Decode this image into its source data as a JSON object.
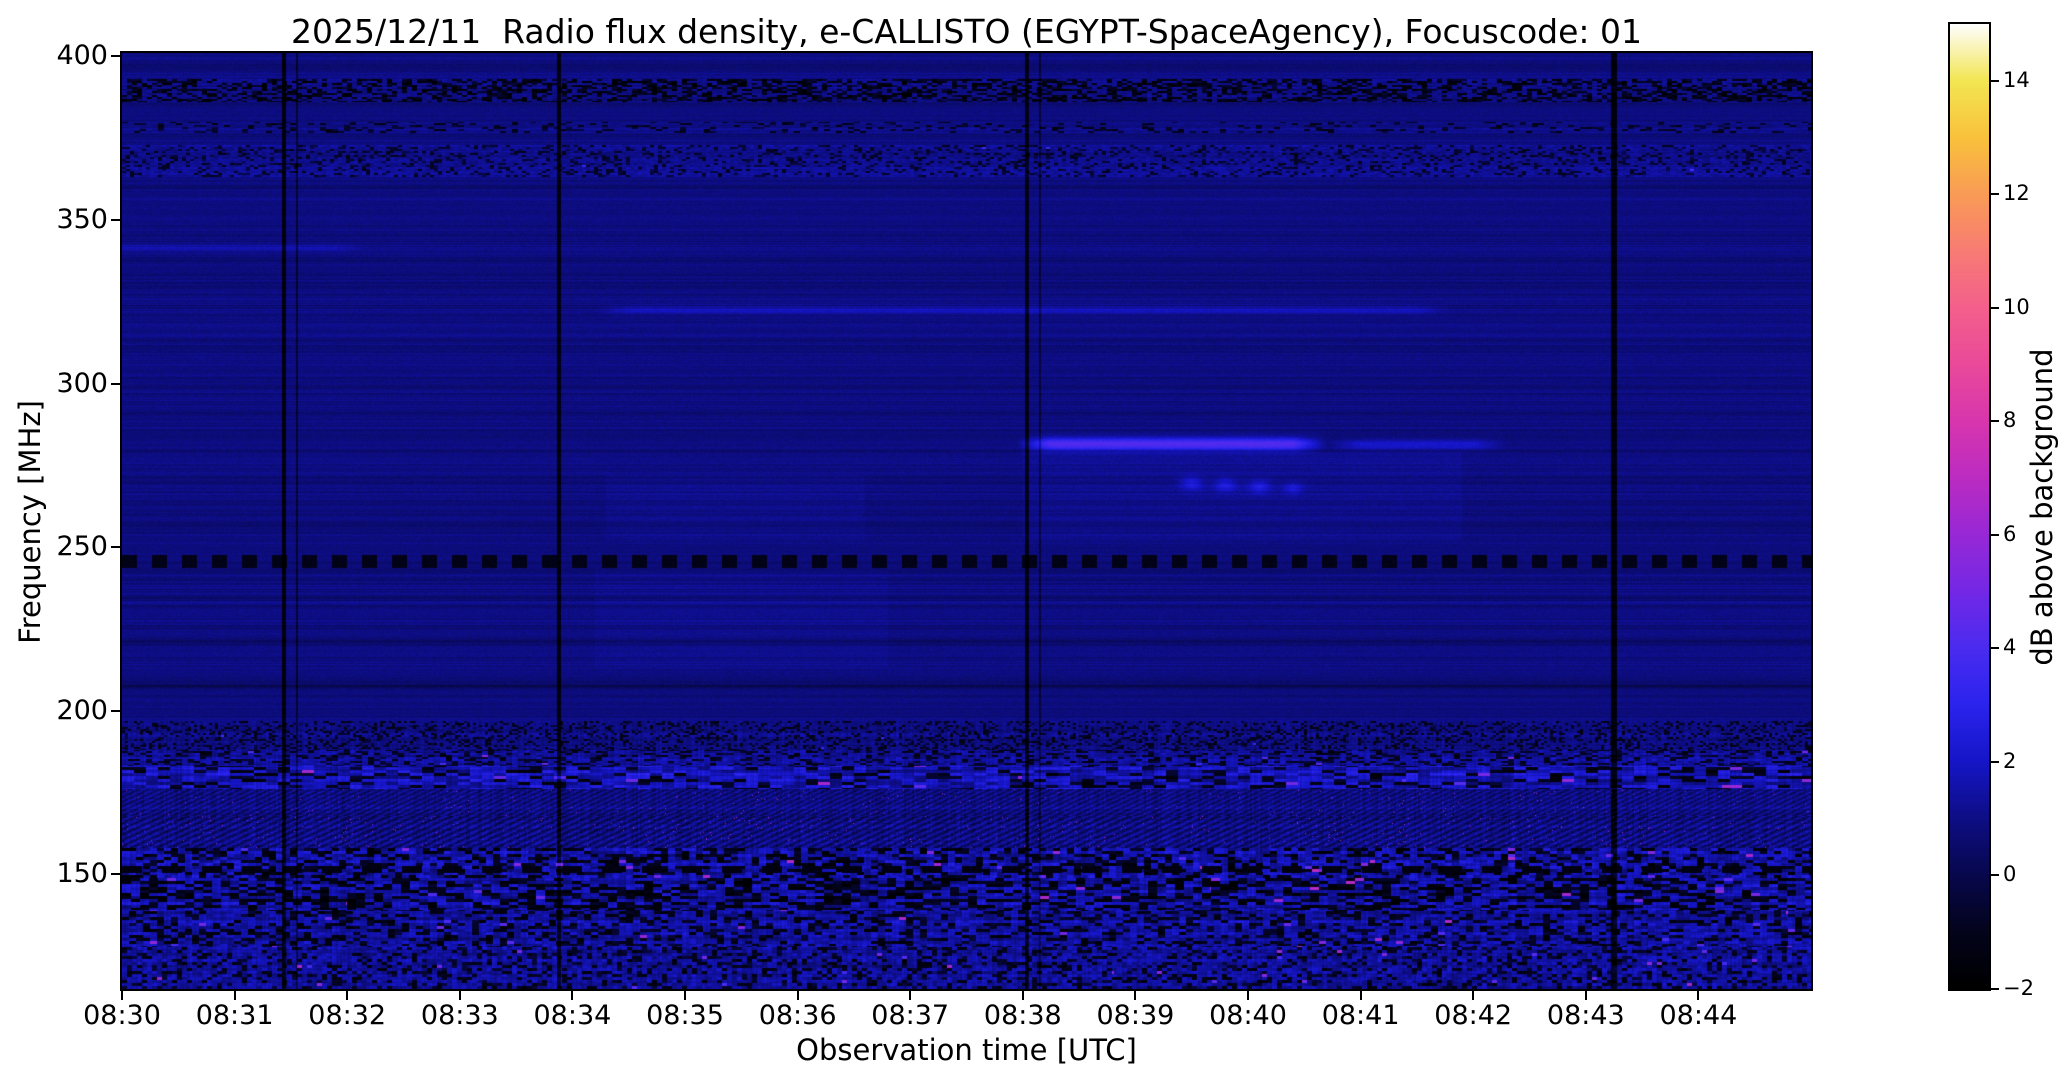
{
  "chart_data": {
    "type": "heatmap",
    "title": "2025/12/11  Radio flux density, e-CALLISTO (EGYPT-SpaceAgency), Focuscode: 01",
    "xlabel": "Observation time [UTC]",
    "ylabel": "Frequency [MHz]",
    "x_ticks": [
      "08:30",
      "08:31",
      "08:32",
      "08:33",
      "08:34",
      "08:35",
      "08:36",
      "08:37",
      "08:38",
      "08:39",
      "08:40",
      "08:41",
      "08:42",
      "08:43",
      "08:44"
    ],
    "x_minutes": 15,
    "x_range": [
      "08:30",
      "08:45"
    ],
    "y_ticks": [
      400,
      350,
      300,
      250,
      200,
      150
    ],
    "y_range": [
      115,
      401
    ],
    "y_inverted": true,
    "grid": false,
    "colorbar": {
      "label": "dB above background",
      "range": [
        -2,
        15
      ],
      "ticks": [
        {
          "value": 14,
          "label": "14"
        },
        {
          "value": 12,
          "label": "12"
        },
        {
          "value": 10,
          "label": "10"
        },
        {
          "value": 8,
          "label": "8"
        },
        {
          "value": 6,
          "label": "6"
        },
        {
          "value": 4,
          "label": "4"
        },
        {
          "value": 2,
          "label": "2"
        },
        {
          "value": 0,
          "label": "0"
        },
        {
          "value": -2,
          "label": "−2"
        }
      ]
    },
    "colormap": [
      [
        -2,
        "#000000"
      ],
      [
        -1,
        "#04041c"
      ],
      [
        0,
        "#08084e"
      ],
      [
        1,
        "#0e0e86"
      ],
      [
        2,
        "#1616c8"
      ],
      [
        3,
        "#2b24ee"
      ],
      [
        4,
        "#4b2cf0"
      ],
      [
        5,
        "#7428e6"
      ],
      [
        6,
        "#9828d6"
      ],
      [
        7,
        "#bc2cc2"
      ],
      [
        8,
        "#d836ae"
      ],
      [
        9,
        "#ea4a9a"
      ],
      [
        10,
        "#f4608c"
      ],
      [
        11,
        "#f87c74"
      ],
      [
        12,
        "#fa9c56"
      ],
      [
        13,
        "#f9c23c"
      ],
      [
        14,
        "#f3e654"
      ],
      [
        15,
        "#ffffff"
      ]
    ],
    "background_db": 0.62,
    "bands": [
      {
        "name": "rfi-390",
        "f_lo": 386,
        "f_hi": 393,
        "type": "speckle",
        "blockx": 5,
        "blocky": 2,
        "salt": 1,
        "p_dark": 0.5,
        "dark_lo": -2,
        "dark_hi": -0.4,
        "add": 0.5,
        "p_hot": 0.0,
        "hot_lo": 3,
        "hot_hi": 5
      },
      {
        "name": "rfi-378",
        "f_lo": 376.5,
        "f_hi": 380,
        "type": "speckle",
        "blockx": 6,
        "blocky": 2,
        "salt": 2,
        "p_dark": 0.22,
        "dark_lo": -1.4,
        "dark_hi": -0.2,
        "add": 0.3,
        "p_hot": 0.0,
        "hot_lo": 3,
        "hot_hi": 5
      },
      {
        "name": "rfi-368",
        "f_lo": 363,
        "f_hi": 373,
        "type": "speckle",
        "blockx": 4,
        "blocky": 2,
        "salt": 3,
        "p_dark": 0.22,
        "dark_lo": -1.2,
        "dark_hi": 0,
        "add": 0.6,
        "p_hot": 0.001,
        "hot_lo": 3,
        "hot_hi": 4.5
      },
      {
        "name": "rfi-246",
        "f_lo": 243.5,
        "f_hi": 247.5,
        "type": "dashed",
        "period": 15,
        "salt": 4,
        "level": -1.4
      },
      {
        "name": "rfi-192",
        "f_lo": 188,
        "f_hi": 197,
        "type": "speckle",
        "blockx": 3,
        "blocky": 2,
        "salt": 5,
        "p_dark": 0.28,
        "dark_lo": -1.5,
        "dark_hi": -0.2,
        "add": 0.4,
        "p_hot": 0.001,
        "hot_lo": 3,
        "hot_hi": 5
      },
      {
        "name": "band-184",
        "f_lo": 183,
        "f_hi": 188,
        "type": "speckle",
        "blockx": 6,
        "blocky": 2,
        "salt": 6,
        "p_dark": 0.3,
        "dark_lo": -1.6,
        "dark_hi": -0.3,
        "add": 0.9,
        "p_hot": 0.004,
        "hot_lo": 3.5,
        "hot_hi": 6
      },
      {
        "name": "band-179",
        "f_lo": 176,
        "f_hi": 183,
        "type": "speckle",
        "blockx": 12,
        "blocky": 3,
        "salt": 7,
        "p_dark": 0.22,
        "dark_lo": -1.8,
        "dark_hi": -0.4,
        "add": 1.9,
        "p_hot": 0.012,
        "hot_lo": 3.5,
        "hot_hi": 6.5
      },
      {
        "name": "band-171",
        "f_lo": 168,
        "f_hi": 176,
        "type": "stripes",
        "salt": 8,
        "kx": 0.62,
        "ky": 1.35,
        "amp": 0.55,
        "jit": 0.9,
        "p_hot": 0.004,
        "hot_lo": 4,
        "hot_hi": 6.5
      },
      {
        "name": "band-163",
        "f_lo": 158,
        "f_hi": 168,
        "type": "stripes",
        "salt": 9,
        "kx": 0.5,
        "ky": 1.1,
        "amp": 0.7,
        "jit": 1.1,
        "p_hot": 0.006,
        "hot_lo": 4,
        "hot_hi": 7
      },
      {
        "name": "band-153",
        "f_lo": 149,
        "f_hi": 158,
        "type": "speckle",
        "blockx": 7,
        "blocky": 3,
        "salt": 10,
        "p_dark": 0.34,
        "dark_lo": -2,
        "dark_hi": -0.5,
        "add": 1.6,
        "p_hot": 0.02,
        "hot_lo": 4,
        "hot_hi": 7
      },
      {
        "name": "rfi-151",
        "f_lo": 150.5,
        "f_hi": 152.5,
        "type": "dashed",
        "period": 20,
        "salt": 14,
        "level": -1.6
      },
      {
        "name": "band-144",
        "f_lo": 139,
        "f_hi": 149,
        "type": "speckle",
        "blockx": 9,
        "blocky": 3,
        "salt": 11,
        "p_dark": 0.42,
        "dark_lo": -2,
        "dark_hi": -0.6,
        "add": 1.4,
        "p_hot": 0.012,
        "hot_lo": 4,
        "hot_hi": 7
      },
      {
        "name": "band-133",
        "f_lo": 128,
        "f_hi": 139,
        "type": "speckle",
        "blockx": 7,
        "blocky": 3,
        "salt": 12,
        "p_dark": 0.3,
        "dark_lo": -1.8,
        "dark_hi": -0.4,
        "add": 1.2,
        "p_hot": 0.01,
        "hot_lo": 4,
        "hot_hi": 7
      },
      {
        "name": "band-120",
        "f_lo": 115,
        "f_hi": 128,
        "type": "speckle",
        "blockx": 5,
        "blocky": 3,
        "salt": 13,
        "p_dark": 0.26,
        "dark_lo": -1.6,
        "dark_hi": -0.3,
        "add": 1.1,
        "p_hot": 0.008,
        "hot_lo": 3.5,
        "hot_hi": 6.5
      }
    ],
    "lines_h": [
      {
        "name": "drift-burst-bright",
        "f": 281.5,
        "sigma": 1.4,
        "t0": 7.95,
        "t1": 10.7,
        "amp": 3.3
      },
      {
        "name": "drift-burst-tail",
        "f": 281.3,
        "sigma": 1.1,
        "t0": 10.7,
        "t1": 12.3,
        "amp": 1.2
      },
      {
        "name": "faint-line-322",
        "f": 322.5,
        "sigma": 0.9,
        "t0": 4.2,
        "t1": 11.8,
        "amp": 0.85
      },
      {
        "name": "faint-line-295",
        "f": 295.5,
        "sigma": 0.8,
        "t0": -1,
        "t1": 16,
        "amp": 0.4
      },
      {
        "name": "faint-line-341",
        "f": 341.5,
        "sigma": 0.7,
        "t0": -1,
        "t1": 2.2,
        "amp": 0.6
      },
      {
        "name": "dark-line-207",
        "f": 207.5,
        "sigma": 0.8,
        "t0": -1,
        "t1": 16,
        "amp": -0.55
      },
      {
        "name": "dark-line-221",
        "f": 221,
        "sigma": 0.7,
        "t0": -1,
        "t1": 16,
        "amp": -0.3
      }
    ],
    "dots": [
      {
        "t": 9.5,
        "f": 269.5,
        "sigma_t": 0.07,
        "sigma_f": 1.5,
        "amp": 1.5
      },
      {
        "t": 9.8,
        "f": 269.0,
        "sigma_t": 0.07,
        "sigma_f": 1.5,
        "amp": 1.5
      },
      {
        "t": 10.1,
        "f": 268.5,
        "sigma_t": 0.07,
        "sigma_f": 1.5,
        "amp": 1.5
      },
      {
        "t": 10.4,
        "f": 268.0,
        "sigma_t": 0.06,
        "sigma_f": 1.3,
        "amp": 1.2
      }
    ],
    "blobs": [
      {
        "t0": 8.0,
        "t1": 11.9,
        "f_lo": 252,
        "f_hi": 279,
        "add": 0.22
      },
      {
        "t0": 4.3,
        "t1": 6.6,
        "f_lo": 252,
        "f_hi": 272,
        "add": 0.18
      },
      {
        "t0": 4.2,
        "t1": 6.8,
        "f_lo": 213,
        "f_hi": 243,
        "add": 0.15
      }
    ],
    "lines_v": [
      {
        "name": "data-gap-0831",
        "t": 1.43,
        "w": 2,
        "depth": 2.3
      },
      {
        "name": "data-gap-0831b",
        "t": 1.55,
        "w": 1,
        "depth": 1.4
      },
      {
        "name": "data-gap-0834",
        "t": 3.88,
        "w": 2,
        "depth": 2.3
      },
      {
        "name": "data-gap-0838",
        "t": 8.03,
        "w": 2,
        "depth": 2.1
      },
      {
        "name": "data-gap-0838b",
        "t": 8.15,
        "w": 1,
        "depth": 1.2
      },
      {
        "name": "data-gap-0843",
        "t": 13.25,
        "w": 3,
        "depth": 2.4
      }
    ]
  }
}
